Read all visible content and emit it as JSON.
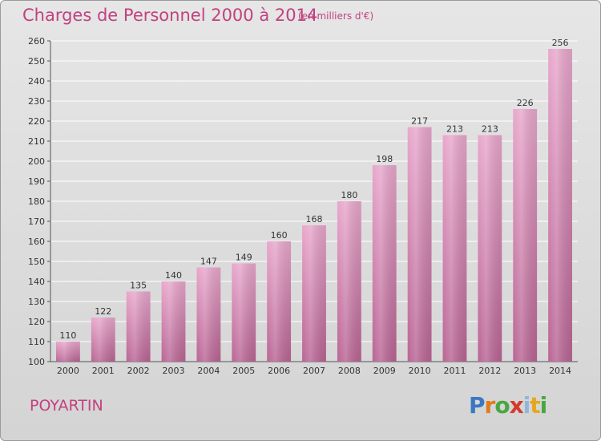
{
  "header": {
    "title": "Charges de Personnel 2000 à 2014",
    "subtitle": "(en milliers d'€)"
  },
  "footer": {
    "commune": "POYARTIN",
    "logo_text": "Proxiti"
  },
  "colors": {
    "title": "#c2417f",
    "bar_top": "#e8a7cc",
    "bar_bottom": "#b96594"
  },
  "chart_data": {
    "type": "bar",
    "title": "Charges de Personnel 2000 à 2014",
    "subtitle": "(en milliers d'€)",
    "categories": [
      "2000",
      "2001",
      "2002",
      "2003",
      "2004",
      "2005",
      "2006",
      "2007",
      "2008",
      "2009",
      "2010",
      "2011",
      "2012",
      "2013",
      "2014"
    ],
    "values": [
      110,
      122,
      135,
      140,
      147,
      149,
      160,
      168,
      180,
      198,
      217,
      213,
      213,
      226,
      256
    ],
    "ylim": [
      100,
      260
    ],
    "yticks": [
      100,
      110,
      120,
      130,
      140,
      150,
      160,
      170,
      180,
      190,
      200,
      210,
      220,
      230,
      240,
      250,
      260
    ],
    "grid": true,
    "legend": "none"
  }
}
